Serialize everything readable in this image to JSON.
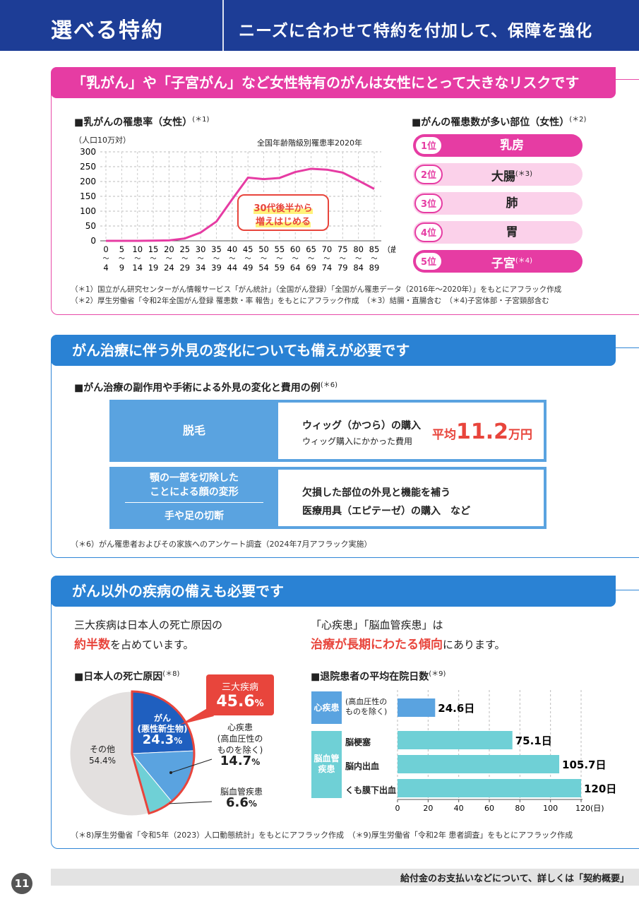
{
  "header": {
    "title": "選べる特約",
    "subtitle": "ニーズに合わせて特約を付加して、保障を強化"
  },
  "section1": {
    "banner": "「乳がん」や「子宮がん」など女性特有のがんは女性にとって大きなリスクです",
    "chart_title": "■乳がんの罹患率（女性）",
    "chart_title_note": "(＊1)",
    "unit_label": "（人口10万対）",
    "chart_caption": "全国年齢階級別罹患率2020年",
    "callout_line1": "30代後半から",
    "callout_line2": "増えはじめる",
    "rank_title": "■がんの罹患数が多い部位（女性）",
    "rank_title_note": "(＊2)",
    "ranks": [
      {
        "num": "1位",
        "label": "乳房",
        "note": ""
      },
      {
        "num": "2位",
        "label": "大腸",
        "note": "(＊3)"
      },
      {
        "num": "3位",
        "label": "肺",
        "note": ""
      },
      {
        "num": "4位",
        "label": "胃",
        "note": ""
      },
      {
        "num": "5位",
        "label": "子宮",
        "note": "(＊4)"
      }
    ],
    "notes": [
      "（＊1）国立がん研究センターがん情報サービス「がん統計」（全国がん登録）「全国がん罹患データ（2016年〜2020年）」をもとにアフラック作成",
      "（＊2）厚生労働省「令和2年全国がん登録 罹患数・率 報告」をもとにアフラック作成　（＊3）結腸・直腸含む　（＊4)子宮体部・子宮頸部含む"
    ]
  },
  "chart_data": {
    "type": "line",
    "title": "乳がんの罹患率（女性）",
    "ylabel": "（人口10万対）",
    "xlabel": "（歳）",
    "ylim": [
      0,
      300
    ],
    "yticks": [
      "0",
      "50",
      "100",
      "150",
      "200",
      "250",
      "300"
    ],
    "x_top": [
      "0",
      "5",
      "10",
      "15",
      "20",
      "25",
      "30",
      "35",
      "40",
      "45",
      "50",
      "55",
      "60",
      "65",
      "70",
      "75",
      "80",
      "85"
    ],
    "x_bottom": [
      "4",
      "9",
      "14",
      "19",
      "24",
      "29",
      "34",
      "39",
      "44",
      "49",
      "54",
      "59",
      "64",
      "69",
      "74",
      "79",
      "84",
      "89"
    ],
    "unit": "（歳）",
    "series": [
      {
        "values": [
          0,
          0,
          0,
          0.5,
          1.5,
          8,
          28,
          65,
          140,
          213,
          208,
          212,
          232,
          243,
          240,
          230,
          203,
          175
        ]
      }
    ],
    "line_color": "#e63ca3",
    "grid": true
  },
  "section2": {
    "banner": "がん治療に伴う外見の変化についても備えが必要です",
    "subtitle": "■がん治療の副作用や手術による外見の変化と費用の例",
    "subtitle_note": "(＊6)",
    "row1_left": "脱毛",
    "row1_main": "ウィッグ（かつら）の購入",
    "row1_sub": "ウィッグ購入にかかった費用",
    "row1_avg": "平均",
    "row1_num": "11.2",
    "row1_unit": "万円",
    "row2_left1": "顎の一部を切除した",
    "row2_left2": "ことによる顔の変形",
    "row2_left3": "手や足の切断",
    "row2_main1": "欠損した部位の外見と機能を補う",
    "row2_main2": "医療用具（エピテーゼ）の購入　など",
    "note": "（＊6）がん罹患者およびその家族へのアンケート調査（2024年7月アフラック実施）"
  },
  "section3": {
    "banner": "がん以外の疾病の備えも必要です",
    "left_text1": "三大疾病は日本人の死亡原因の",
    "left_text2_em": "約半数",
    "left_text2": "を占めています。",
    "right_text1": "「心疾患」「脳血管疾患」は",
    "right_text2_em": "治療が長期にわたる傾向",
    "right_text2": "にあります。",
    "pie_title": "■日本人の死亡原因",
    "pie_title_note": "(＊8)",
    "callout_label": "三大疾病",
    "callout_value": "45.6",
    "callout_pct": "%",
    "pie_labels": {
      "cancer1": "がん",
      "cancer2": "(悪性新生物)",
      "cancer_val": "24.3",
      "heart1": "心疾患",
      "heart2": "(高血圧性の",
      "heart3": "ものを除く)",
      "heart_val": "14.7",
      "brain": "脳血管疾患",
      "brain_val": "6.6",
      "other": "その他",
      "other_val": "54.4%",
      "pct": "%"
    },
    "bar_title": "■退院患者の平均在院日数",
    "bar_title_note": "(＊9)",
    "group1": "心疾患",
    "group2": "脳血管疾患",
    "bars": [
      {
        "label1": "(高血圧性の",
        "label2": "ものを除く)",
        "value": "24.6日"
      },
      {
        "label1": "脳梗塞",
        "label2": "",
        "value": "75.1日"
      },
      {
        "label1": "脳内出血",
        "label2": "",
        "value": "105.7日"
      },
      {
        "label1": "くも膜下出血",
        "label2": "",
        "value": "120日"
      }
    ],
    "x_ticks": [
      "0",
      "20",
      "40",
      "60",
      "80",
      "100",
      "120(日)"
    ],
    "notes": "（＊8)厚生労働省「令和5年（2023）人口動態統計」をもとにアフラック作成　（＊9)厚生労働省「令和2年 患者調査」をもとにアフラック作成"
  },
  "pie_chart_data": {
    "type": "pie",
    "slices": [
      {
        "name": "がん(悪性新生物)",
        "value": 24.3,
        "color": "#1f5fbf"
      },
      {
        "name": "心疾患(高血圧性のものを除く)",
        "value": 14.7,
        "color": "#5aa3e0"
      },
      {
        "name": "脳血管疾患",
        "value": 6.6,
        "color": "#6fd0d6"
      },
      {
        "name": "その他",
        "value": 54.4,
        "color": "#e3e0df"
      }
    ]
  },
  "bar_chart_data": {
    "type": "bar",
    "categories": [
      "心疾患(高血圧性のものを除く)",
      "脳梗塞",
      "脳内出血",
      "くも膜下出血"
    ],
    "values": [
      24.6,
      75.1,
      105.7,
      120
    ],
    "xlim": [
      0,
      120
    ],
    "colors": [
      "#5aa3e0",
      "#6fd0d6",
      "#6fd0d6",
      "#6fd0d6"
    ]
  },
  "footer": {
    "text": "給付金のお支払いなどについて、詳しくは「契約概要」",
    "page": "11"
  }
}
